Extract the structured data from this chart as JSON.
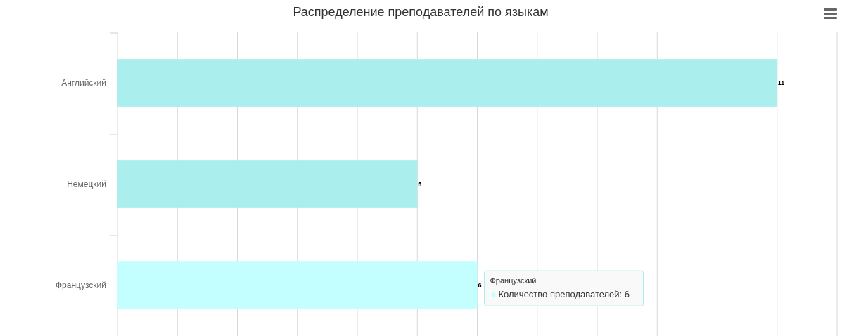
{
  "chart_data": {
    "type": "bar",
    "orientation": "horizontal",
    "title": "Распределение преподавателей по языкам",
    "categories": [
      "Английский",
      "Немецкий",
      "Французский"
    ],
    "series": [
      {
        "values": [
          11,
          5,
          6
        ],
        "colors": [
          "#aaeeee",
          "#aaeeee",
          "#c4ffff"
        ]
      }
    ],
    "xlim": [
      0,
      12
    ],
    "xticks": [
      {
        "value": 0,
        "label": null
      },
      {
        "value": 1,
        "label": null
      },
      {
        "value": 2,
        "label": null
      },
      {
        "value": 3,
        "label": null
      },
      {
        "value": 4,
        "label": null
      },
      {
        "value": 5,
        "label": null
      },
      {
        "value": 6,
        "label": null
      },
      {
        "value": 7,
        "label": null
      },
      {
        "value": 8,
        "label": null
      },
      {
        "value": 9,
        "label": null
      },
      {
        "value": 10,
        "label": null
      },
      {
        "value": 11,
        "label": null
      },
      {
        "value": 12,
        "label": null
      }
    ],
    "tick_labels": "y",
    "grid": "x",
    "data_labels": true,
    "annotations": [
      {
        "text": "Французский",
        "y": "Французский",
        "x": 6
      },
      "Количество преподавателей: 6"
    ]
  }
}
